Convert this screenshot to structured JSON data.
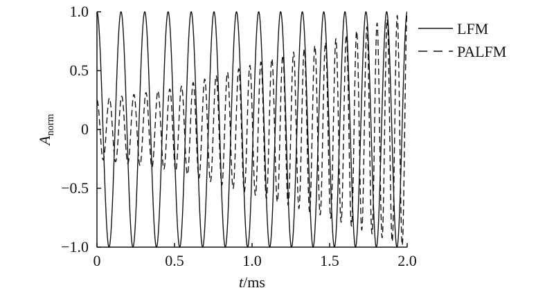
{
  "chart_data": {
    "type": "line",
    "xlabel": {
      "italic": "t",
      "rest": "/ms"
    },
    "ylabel": {
      "main": "A",
      "sub": "norm"
    },
    "xlim": [
      0,
      2.0
    ],
    "ylim": [
      -1.0,
      1.0
    ],
    "x_ticks": [
      {
        "value": 0,
        "label": "0"
      },
      {
        "value": 0.5,
        "label": "0.5"
      },
      {
        "value": 1.0,
        "label": "1.0"
      },
      {
        "value": 1.5,
        "label": "1.5"
      },
      {
        "value": 2.0,
        "label": "2.0"
      }
    ],
    "y_ticks": [
      {
        "value": 1.0,
        "label": "1.0"
      },
      {
        "value": 0.5,
        "label": "0.5"
      },
      {
        "value": 0,
        "label": "0"
      },
      {
        "value": -0.5,
        "label": "−0.5"
      },
      {
        "value": -1.0,
        "label": "−1.0"
      }
    ],
    "legend_position": "top-right-outside",
    "grid": false,
    "series": [
      {
        "name": "LFM",
        "style": "solid",
        "color": "#111111",
        "model": "cos(2*pi*(f0*t + 0.5*k*t^2))",
        "f0_per_ms": 6.4,
        "chirp_rate_per_ms2": 0.6
      },
      {
        "name": "PALFM",
        "style": "dashed",
        "color": "#111111",
        "model": "e(t)*cos(2*pi*(f0*t + 0.5*k*t^2))",
        "f0_per_ms": 12.4,
        "chirp_rate_per_ms2": 1.6,
        "envelope": [
          [
            0,
            0.25
          ],
          [
            0.5,
            0.35
          ],
          [
            1.0,
            0.55
          ],
          [
            1.5,
            0.75
          ],
          [
            2.0,
            1.0
          ]
        ]
      }
    ]
  }
}
